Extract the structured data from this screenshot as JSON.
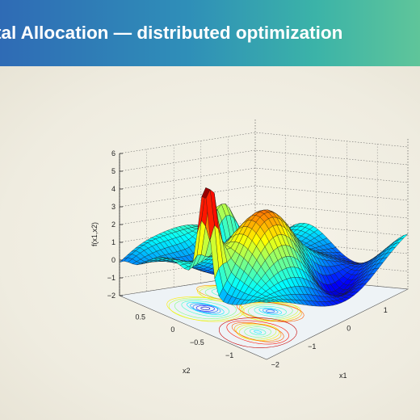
{
  "slide": {
    "title": "tal Allocation — distributed optimization"
  },
  "chart_data": {
    "type": "surface3d",
    "zlabel": "f(x1,x2)",
    "xlabel": "x1",
    "ylabel": "x2",
    "z_ticks": [
      "6",
      "5",
      "4",
      "3",
      "2",
      "1",
      "0",
      "−1",
      "−2"
    ],
    "x1_ticks": [
      "−2",
      "−1",
      "0",
      "1"
    ],
    "x2_ticks": [
      "0.5",
      "0",
      "−0.5",
      "−1"
    ],
    "zlim": [
      -2,
      6
    ],
    "x1_range": [
      -2,
      2
    ],
    "x2_range": [
      -1,
      1
    ],
    "colormap": "jet",
    "contour_projection": true,
    "grid": true
  }
}
